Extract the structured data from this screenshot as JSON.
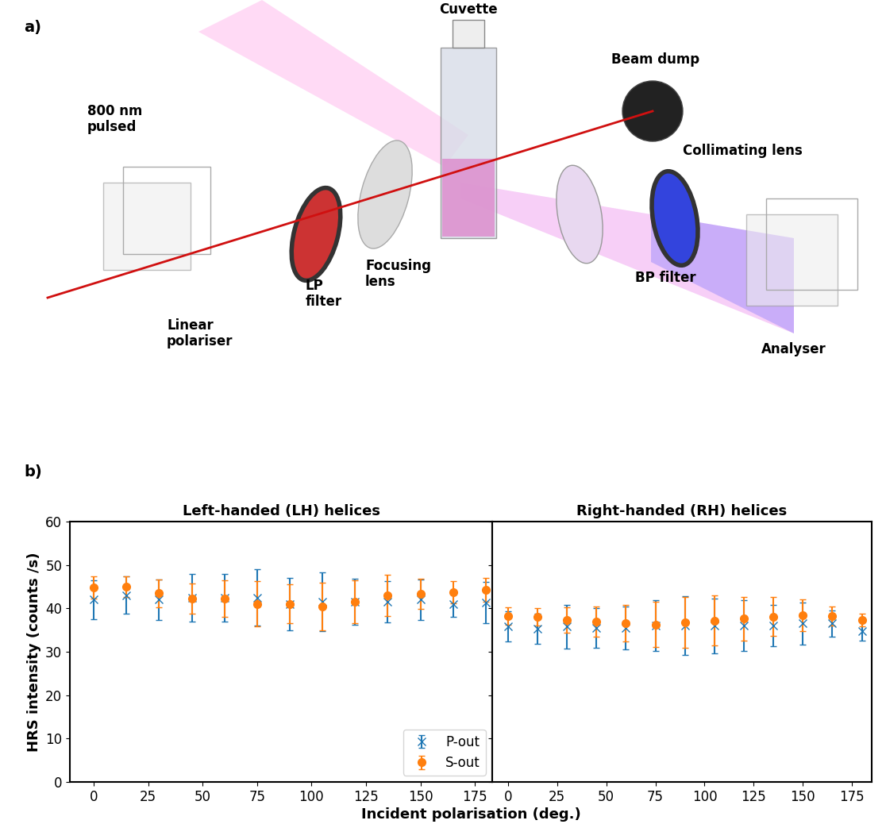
{
  "panel_labels": [
    "a)",
    "b)"
  ],
  "diagram": {
    "labels": {
      "source": "800 nm\npulsed",
      "polariser": "Linear\npolariser",
      "lp_filter": "LP\nfilter",
      "focusing_lens": "Focusing\nlens",
      "cuvette": "Cuvette",
      "beam_dump": "Beam dump",
      "collimating_lens": "Collimating lens",
      "bp_filter": "BP filter",
      "analyser": "Analyser"
    }
  },
  "figure_xlabel": "Incident polarisation (deg.)",
  "chart_data": [
    {
      "type": "scatter",
      "title": "Left-handed (LH) helices",
      "ylabel": "HRS intensity (counts /s)",
      "x": [
        0,
        15,
        30,
        45,
        60,
        75,
        90,
        105,
        120,
        135,
        150,
        165,
        180
      ],
      "xlim": [
        -11,
        183
      ],
      "xticks": [
        0,
        25,
        50,
        75,
        100,
        125,
        150,
        175
      ],
      "ylim": [
        0,
        60
      ],
      "yticks": [
        0,
        10,
        20,
        30,
        40,
        50,
        60
      ],
      "legend": "lower right",
      "series": [
        {
          "name": "P-out",
          "color": "#1f77b4",
          "marker": "x",
          "line_style": "none",
          "values": [
            42,
            43,
            42,
            42.5,
            42.5,
            42.5,
            41,
            41.5,
            41.5,
            41.5,
            42,
            41,
            41.3
          ],
          "errors": [
            4.5,
            4.3,
            4.7,
            5.5,
            5.5,
            6.5,
            6,
            6.8,
            5.3,
            4.7,
            4.7,
            3,
            4.8
          ]
        },
        {
          "name": "S-out",
          "color": "#ff7f0e",
          "marker": "o",
          "line_style": "none",
          "values": [
            44.8,
            45,
            43.5,
            42.3,
            42.3,
            41,
            41,
            40.5,
            41.5,
            43,
            43.3,
            43.7,
            44.3
          ],
          "errors": [
            2.5,
            2.3,
            3.2,
            3.5,
            4.2,
            5.2,
            4.5,
            5.5,
            5,
            4.7,
            3.5,
            2.5,
            2.8
          ]
        }
      ]
    },
    {
      "type": "scatter",
      "title": "Right-handed (RH) helices",
      "tick_labels": "x",
      "x": [
        0,
        15,
        30,
        45,
        60,
        75,
        90,
        105,
        120,
        135,
        150,
        165,
        180
      ],
      "xlim": [
        -8,
        185
      ],
      "xticks": [
        0,
        25,
        50,
        75,
        100,
        125,
        150,
        175
      ],
      "ylim": [
        0,
        60
      ],
      "yticks": [
        0,
        10,
        20,
        30,
        40,
        50,
        60
      ],
      "series": [
        {
          "name": "P-out",
          "color": "#1f77b4",
          "marker": "x",
          "line_style": "none",
          "values": [
            35.8,
            35.3,
            35.8,
            35.5,
            35.5,
            36,
            36,
            36,
            36,
            36,
            36.5,
            36.5,
            34.8
          ],
          "errors": [
            3.5,
            3.5,
            5,
            4.5,
            5,
            5.8,
            6.8,
            6.3,
            5.8,
            4.8,
            4.8,
            3,
            2.3
          ]
        },
        {
          "name": "S-out",
          "color": "#ff7f0e",
          "marker": "o",
          "line_style": "none",
          "values": [
            38.3,
            38,
            37.3,
            37,
            36.6,
            36.3,
            36.8,
            37.2,
            37.6,
            38.1,
            38.4,
            38.2,
            37.3
          ],
          "errors": [
            2,
            2,
            3,
            3.5,
            4.2,
            5.2,
            5.8,
            5.8,
            5,
            4.5,
            3.6,
            2.2,
            1.5
          ]
        }
      ]
    }
  ]
}
